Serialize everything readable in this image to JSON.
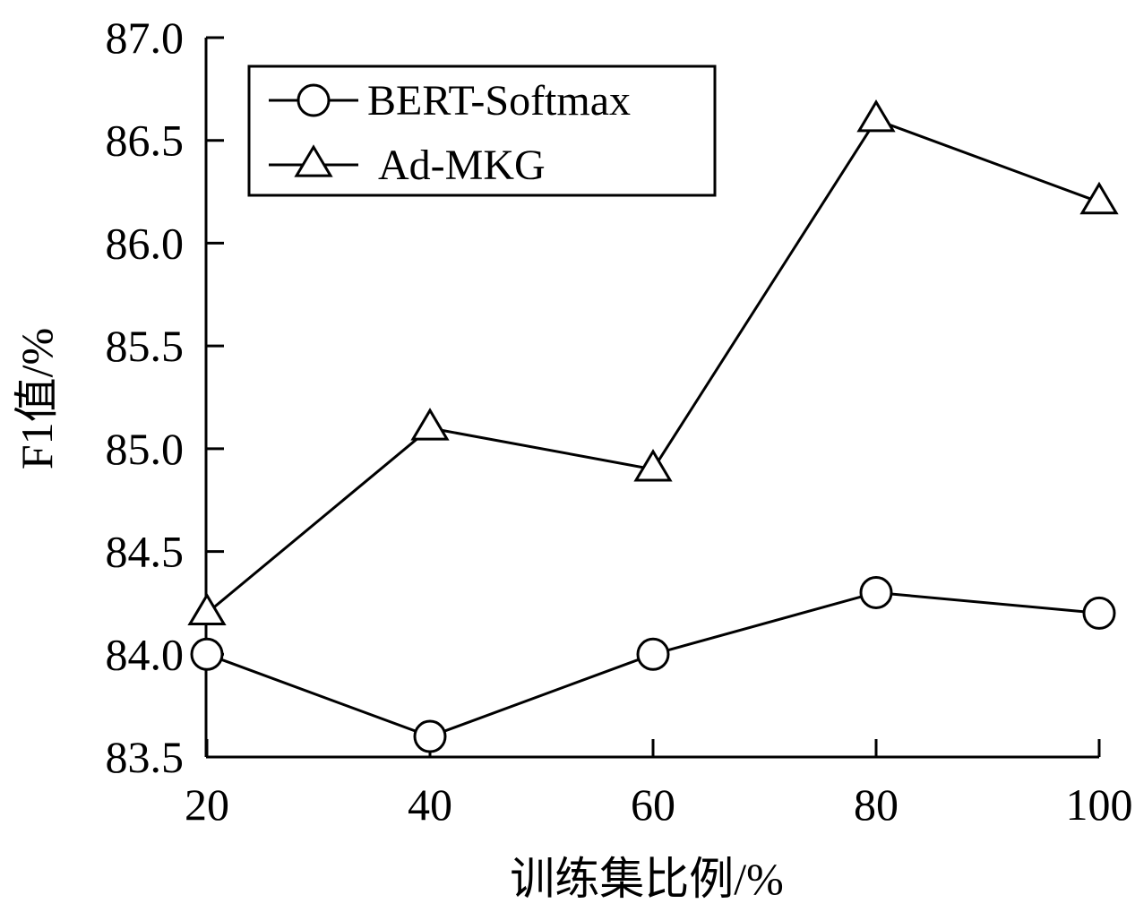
{
  "chart_data": {
    "type": "line",
    "title": "",
    "xlabel": "训练集比例/%",
    "ylabel": "F1值/%",
    "x": [
      20,
      40,
      60,
      80,
      100
    ],
    "x_ticks": [
      "20",
      "40",
      "60",
      "80",
      "100"
    ],
    "y_ticks": [
      "83.5",
      "84.0",
      "84.5",
      "85.0",
      "85.5",
      "86.0",
      "86.5",
      "87.0"
    ],
    "ylim": [
      83.5,
      87.0
    ],
    "xlim": [
      20,
      100
    ],
    "grid": false,
    "legend_position": "top-left",
    "series": [
      {
        "name": "BERT-Softmax",
        "marker": "circle",
        "color": "#000000",
        "values": [
          84.0,
          83.6,
          84.0,
          84.3,
          84.2
        ]
      },
      {
        "name": "Ad-MKG",
        "marker": "triangle",
        "color": "#000000",
        "values": [
          84.2,
          85.1,
          84.9,
          86.6,
          86.2
        ]
      }
    ]
  }
}
